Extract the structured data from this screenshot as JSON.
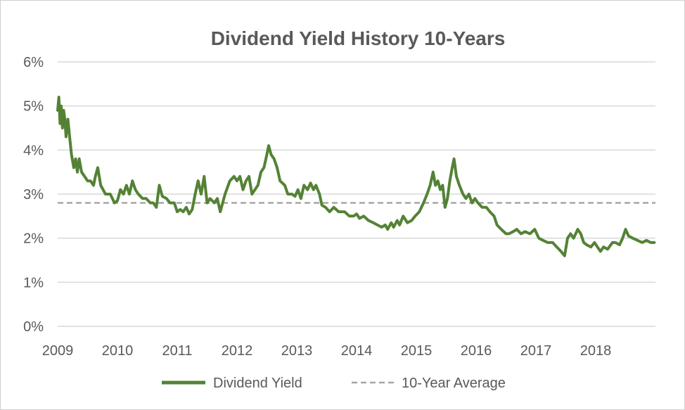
{
  "chart_data": {
    "type": "line",
    "title": "Dividend Yield History 10-Years",
    "xlabel": "",
    "ylabel": "",
    "x_ticks": [
      "2009",
      "2010",
      "2011",
      "2012",
      "2013",
      "2014",
      "2015",
      "2016",
      "2017",
      "2018"
    ],
    "y_ticks": [
      "0%",
      "1%",
      "2%",
      "3%",
      "4%",
      "5%",
      "6%"
    ],
    "xlim": [
      2009.0,
      2019.0
    ],
    "ylim": [
      0,
      6
    ],
    "grid": true,
    "legend_position": "bottom",
    "series": [
      {
        "name": "Dividend Yield",
        "color": "#548235",
        "style": "solid",
        "points": [
          [
            2009.0,
            4.9
          ],
          [
            2009.02,
            5.2
          ],
          [
            2009.04,
            4.6
          ],
          [
            2009.06,
            5.0
          ],
          [
            2009.08,
            4.5
          ],
          [
            2009.1,
            4.9
          ],
          [
            2009.12,
            4.7
          ],
          [
            2009.14,
            4.3
          ],
          [
            2009.17,
            4.7
          ],
          [
            2009.2,
            4.3
          ],
          [
            2009.23,
            3.9
          ],
          [
            2009.27,
            3.6
          ],
          [
            2009.3,
            3.8
          ],
          [
            2009.33,
            3.5
          ],
          [
            2009.36,
            3.8
          ],
          [
            2009.4,
            3.5
          ],
          [
            2009.45,
            3.4
          ],
          [
            2009.5,
            3.3
          ],
          [
            2009.55,
            3.3
          ],
          [
            2009.6,
            3.2
          ],
          [
            2009.63,
            3.4
          ],
          [
            2009.67,
            3.6
          ],
          [
            2009.72,
            3.2
          ],
          [
            2009.8,
            3.0
          ],
          [
            2009.88,
            3.0
          ],
          [
            2009.95,
            2.8
          ],
          [
            2010.0,
            2.85
          ],
          [
            2010.05,
            3.1
          ],
          [
            2010.1,
            3.0
          ],
          [
            2010.15,
            3.2
          ],
          [
            2010.2,
            3.0
          ],
          [
            2010.25,
            3.3
          ],
          [
            2010.3,
            3.1
          ],
          [
            2010.35,
            3.0
          ],
          [
            2010.42,
            2.9
          ],
          [
            2010.48,
            2.9
          ],
          [
            2010.55,
            2.8
          ],
          [
            2010.6,
            2.8
          ],
          [
            2010.65,
            2.7
          ],
          [
            2010.7,
            3.2
          ],
          [
            2010.75,
            2.95
          ],
          [
            2010.82,
            2.9
          ],
          [
            2010.88,
            2.8
          ],
          [
            2010.95,
            2.8
          ],
          [
            2011.0,
            2.6
          ],
          [
            2011.05,
            2.65
          ],
          [
            2011.1,
            2.6
          ],
          [
            2011.15,
            2.7
          ],
          [
            2011.2,
            2.55
          ],
          [
            2011.25,
            2.65
          ],
          [
            2011.3,
            3.0
          ],
          [
            2011.35,
            3.3
          ],
          [
            2011.4,
            3.0
          ],
          [
            2011.45,
            3.4
          ],
          [
            2011.5,
            2.8
          ],
          [
            2011.55,
            2.9
          ],
          [
            2011.62,
            2.8
          ],
          [
            2011.67,
            2.9
          ],
          [
            2011.72,
            2.6
          ],
          [
            2011.8,
            3.0
          ],
          [
            2011.88,
            3.3
          ],
          [
            2011.95,
            3.4
          ],
          [
            2012.0,
            3.3
          ],
          [
            2012.05,
            3.4
          ],
          [
            2012.1,
            3.1
          ],
          [
            2012.15,
            3.3
          ],
          [
            2012.2,
            3.4
          ],
          [
            2012.25,
            3.0
          ],
          [
            2012.3,
            3.1
          ],
          [
            2012.35,
            3.2
          ],
          [
            2012.4,
            3.5
          ],
          [
            2012.45,
            3.6
          ],
          [
            2012.5,
            3.9
          ],
          [
            2012.53,
            4.1
          ],
          [
            2012.57,
            3.9
          ],
          [
            2012.62,
            3.8
          ],
          [
            2012.67,
            3.6
          ],
          [
            2012.72,
            3.3
          ],
          [
            2012.8,
            3.2
          ],
          [
            2012.85,
            3.0
          ],
          [
            2012.92,
            3.0
          ],
          [
            2012.97,
            2.95
          ],
          [
            2013.02,
            3.1
          ],
          [
            2013.07,
            2.9
          ],
          [
            2013.12,
            3.2
          ],
          [
            2013.18,
            3.1
          ],
          [
            2013.23,
            3.25
          ],
          [
            2013.28,
            3.1
          ],
          [
            2013.32,
            3.2
          ],
          [
            2013.38,
            3.0
          ],
          [
            2013.42,
            2.75
          ],
          [
            2013.48,
            2.7
          ],
          [
            2013.55,
            2.6
          ],
          [
            2013.62,
            2.7
          ],
          [
            2013.7,
            2.6
          ],
          [
            2013.8,
            2.6
          ],
          [
            2013.88,
            2.5
          ],
          [
            2013.95,
            2.5
          ],
          [
            2014.0,
            2.55
          ],
          [
            2014.05,
            2.45
          ],
          [
            2014.12,
            2.5
          ],
          [
            2014.2,
            2.4
          ],
          [
            2014.28,
            2.35
          ],
          [
            2014.35,
            2.3
          ],
          [
            2014.42,
            2.25
          ],
          [
            2014.48,
            2.3
          ],
          [
            2014.52,
            2.2
          ],
          [
            2014.58,
            2.35
          ],
          [
            2014.62,
            2.25
          ],
          [
            2014.68,
            2.4
          ],
          [
            2014.72,
            2.3
          ],
          [
            2014.78,
            2.5
          ],
          [
            2014.85,
            2.35
          ],
          [
            2014.92,
            2.4
          ],
          [
            2014.98,
            2.5
          ],
          [
            2015.05,
            2.6
          ],
          [
            2015.12,
            2.8
          ],
          [
            2015.18,
            3.0
          ],
          [
            2015.23,
            3.2
          ],
          [
            2015.28,
            3.5
          ],
          [
            2015.32,
            3.2
          ],
          [
            2015.36,
            3.3
          ],
          [
            2015.4,
            3.1
          ],
          [
            2015.44,
            3.2
          ],
          [
            2015.48,
            2.7
          ],
          [
            2015.52,
            2.9
          ],
          [
            2015.56,
            3.3
          ],
          [
            2015.6,
            3.6
          ],
          [
            2015.63,
            3.8
          ],
          [
            2015.67,
            3.4
          ],
          [
            2015.72,
            3.2
          ],
          [
            2015.78,
            3.0
          ],
          [
            2015.83,
            2.9
          ],
          [
            2015.88,
            3.0
          ],
          [
            2015.93,
            2.8
          ],
          [
            2015.98,
            2.9
          ],
          [
            2016.03,
            2.8
          ],
          [
            2016.1,
            2.7
          ],
          [
            2016.17,
            2.7
          ],
          [
            2016.23,
            2.6
          ],
          [
            2016.3,
            2.5
          ],
          [
            2016.35,
            2.3
          ],
          [
            2016.42,
            2.2
          ],
          [
            2016.5,
            2.1
          ],
          [
            2016.55,
            2.1
          ],
          [
            2016.62,
            2.15
          ],
          [
            2016.68,
            2.2
          ],
          [
            2016.75,
            2.1
          ],
          [
            2016.82,
            2.15
          ],
          [
            2016.9,
            2.1
          ],
          [
            2016.98,
            2.2
          ],
          [
            2017.05,
            2.0
          ],
          [
            2017.12,
            1.95
          ],
          [
            2017.2,
            1.9
          ],
          [
            2017.28,
            1.9
          ],
          [
            2017.35,
            1.8
          ],
          [
            2017.42,
            1.7
          ],
          [
            2017.48,
            1.6
          ],
          [
            2017.53,
            2.0
          ],
          [
            2017.58,
            2.1
          ],
          [
            2017.63,
            2.0
          ],
          [
            2017.7,
            2.2
          ],
          [
            2017.75,
            2.1
          ],
          [
            2017.8,
            1.9
          ],
          [
            2017.85,
            1.85
          ],
          [
            2017.92,
            1.8
          ],
          [
            2017.98,
            1.9
          ],
          [
            2018.03,
            1.8
          ],
          [
            2018.08,
            1.7
          ],
          [
            2018.13,
            1.8
          ],
          [
            2018.2,
            1.75
          ],
          [
            2018.28,
            1.9
          ],
          [
            2018.33,
            1.9
          ],
          [
            2018.4,
            1.85
          ],
          [
            2018.45,
            2.0
          ],
          [
            2018.5,
            2.2
          ],
          [
            2018.55,
            2.05
          ],
          [
            2018.62,
            2.0
          ],
          [
            2018.7,
            1.95
          ],
          [
            2018.78,
            1.9
          ],
          [
            2018.85,
            1.95
          ],
          [
            2018.92,
            1.9
          ],
          [
            2018.98,
            1.9
          ]
        ]
      },
      {
        "name": "10-Year Average",
        "color": "#A6A6A6",
        "style": "dashed",
        "constant": 2.8
      }
    ]
  }
}
